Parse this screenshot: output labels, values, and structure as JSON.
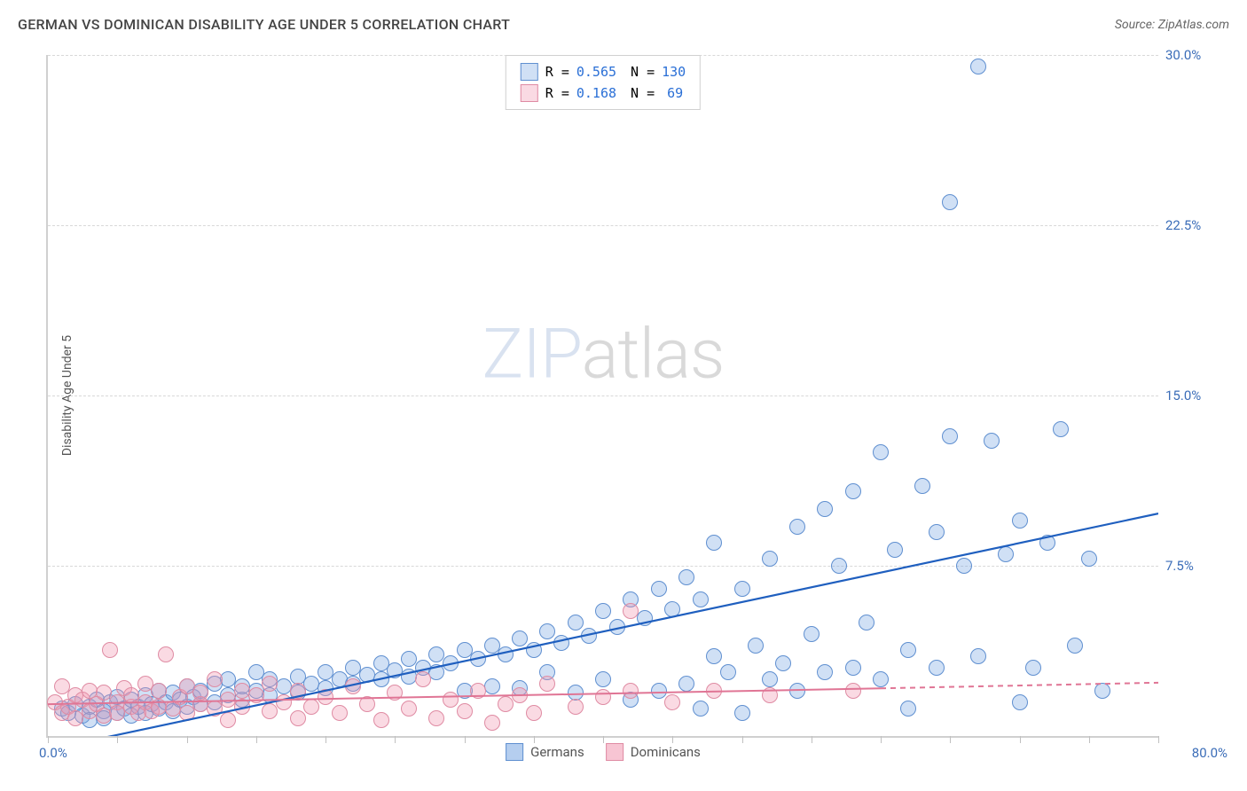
{
  "header": {
    "title": "GERMAN VS DOMINICAN DISABILITY AGE UNDER 5 CORRELATION CHART",
    "source": "Source: ZipAtlas.com"
  },
  "chart": {
    "type": "scatter",
    "ylabel": "Disability Age Under 5",
    "background_color": "#ffffff",
    "grid_color": "#d8d8d8",
    "axis_color": "#d0d0d0",
    "label_color": "#3b6db8",
    "xlim": [
      0,
      80
    ],
    "ylim": [
      0,
      30
    ],
    "x_min_label": "0.0%",
    "x_max_label": "80.0%",
    "xtick_positions": [
      0,
      5,
      10,
      15,
      20,
      25,
      30,
      35,
      40,
      45,
      50,
      55,
      60,
      65,
      70,
      75,
      80
    ],
    "yticks": [
      {
        "v": 7.5,
        "label": "7.5%"
      },
      {
        "v": 15.0,
        "label": "15.0%"
      },
      {
        "v": 22.5,
        "label": "22.5%"
      },
      {
        "v": 30.0,
        "label": "30.0%"
      }
    ],
    "watermark": {
      "part1": "ZIP",
      "part2": "atlas"
    },
    "marker_radius": 8,
    "marker_stroke_width": 1.2,
    "series": [
      {
        "name": "Germans",
        "fill": "rgba(120,165,225,0.35)",
        "stroke": "#5f8fd0",
        "R": "0.565",
        "N": "130",
        "regression": {
          "x1": 0,
          "y1": -0.6,
          "x2": 80,
          "y2": 9.8,
          "color": "#1f5fbf",
          "width": 2.2,
          "dash": "none",
          "dash_ext": "none"
        },
        "points": [
          [
            1,
            1.2
          ],
          [
            1.5,
            1.0
          ],
          [
            2,
            1.4
          ],
          [
            2.5,
            0.9
          ],
          [
            3,
            1.3
          ],
          [
            3,
            0.7
          ],
          [
            3.5,
            1.6
          ],
          [
            4,
            1.1
          ],
          [
            4,
            0.8
          ],
          [
            4.5,
            1.5
          ],
          [
            5,
            1.0
          ],
          [
            5,
            1.7
          ],
          [
            5.5,
            1.2
          ],
          [
            6,
            0.9
          ],
          [
            6,
            1.6
          ],
          [
            6.5,
            1.3
          ],
          [
            7,
            1.8
          ],
          [
            7,
            1.0
          ],
          [
            7.5,
            1.4
          ],
          [
            8,
            1.2
          ],
          [
            8,
            2.0
          ],
          [
            8.5,
            1.5
          ],
          [
            9,
            1.1
          ],
          [
            9,
            1.9
          ],
          [
            9.5,
            1.6
          ],
          [
            10,
            1.3
          ],
          [
            10,
            2.2
          ],
          [
            10.5,
            1.7
          ],
          [
            11,
            1.4
          ],
          [
            11,
            2.0
          ],
          [
            12,
            1.5
          ],
          [
            12,
            2.3
          ],
          [
            13,
            1.8
          ],
          [
            13,
            2.5
          ],
          [
            14,
            1.6
          ],
          [
            14,
            2.2
          ],
          [
            15,
            2.0
          ],
          [
            15,
            2.8
          ],
          [
            16,
            1.8
          ],
          [
            16,
            2.5
          ],
          [
            17,
            2.2
          ],
          [
            18,
            2.6
          ],
          [
            18,
            1.9
          ],
          [
            19,
            2.3
          ],
          [
            20,
            2.8
          ],
          [
            20,
            2.1
          ],
          [
            21,
            2.5
          ],
          [
            22,
            3.0
          ],
          [
            22,
            2.3
          ],
          [
            23,
            2.7
          ],
          [
            24,
            3.2
          ],
          [
            24,
            2.5
          ],
          [
            25,
            2.9
          ],
          [
            26,
            3.4
          ],
          [
            26,
            2.6
          ],
          [
            27,
            3.0
          ],
          [
            28,
            3.6
          ],
          [
            28,
            2.8
          ],
          [
            29,
            3.2
          ],
          [
            30,
            3.8
          ],
          [
            30,
            2.0
          ],
          [
            31,
            3.4
          ],
          [
            32,
            4.0
          ],
          [
            32,
            2.2
          ],
          [
            33,
            3.6
          ],
          [
            34,
            4.3
          ],
          [
            34,
            2.1
          ],
          [
            35,
            3.8
          ],
          [
            36,
            4.6
          ],
          [
            36,
            2.8
          ],
          [
            37,
            4.1
          ],
          [
            38,
            5.0
          ],
          [
            38,
            1.9
          ],
          [
            39,
            4.4
          ],
          [
            40,
            5.5
          ],
          [
            40,
            2.5
          ],
          [
            41,
            4.8
          ],
          [
            42,
            6.0
          ],
          [
            42,
            1.6
          ],
          [
            43,
            5.2
          ],
          [
            44,
            2.0
          ],
          [
            44,
            6.5
          ],
          [
            45,
            5.6
          ],
          [
            46,
            7.0
          ],
          [
            46,
            2.3
          ],
          [
            47,
            1.2
          ],
          [
            47,
            6.0
          ],
          [
            48,
            3.5
          ],
          [
            48,
            8.5
          ],
          [
            49,
            2.8
          ],
          [
            50,
            6.5
          ],
          [
            50,
            1.0
          ],
          [
            51,
            4.0
          ],
          [
            52,
            7.8
          ],
          [
            52,
            2.5
          ],
          [
            53,
            3.2
          ],
          [
            54,
            9.2
          ],
          [
            54,
            2.0
          ],
          [
            55,
            4.5
          ],
          [
            56,
            10.0
          ],
          [
            56,
            2.8
          ],
          [
            57,
            7.5
          ],
          [
            58,
            3.0
          ],
          [
            58,
            10.8
          ],
          [
            59,
            5.0
          ],
          [
            60,
            2.5
          ],
          [
            60,
            12.5
          ],
          [
            61,
            8.2
          ],
          [
            62,
            3.8
          ],
          [
            62,
            1.2
          ],
          [
            63,
            11.0
          ],
          [
            64,
            9.0
          ],
          [
            64,
            3.0
          ],
          [
            65,
            13.2
          ],
          [
            65,
            23.5
          ],
          [
            66,
            7.5
          ],
          [
            67,
            3.5
          ],
          [
            67,
            29.5
          ],
          [
            68,
            13.0
          ],
          [
            69,
            8.0
          ],
          [
            70,
            1.5
          ],
          [
            70,
            9.5
          ],
          [
            71,
            3.0
          ],
          [
            72,
            8.5
          ],
          [
            73,
            13.5
          ],
          [
            74,
            4.0
          ],
          [
            75,
            7.8
          ],
          [
            76,
            2.0
          ]
        ]
      },
      {
        "name": "Dominicans",
        "fill": "rgba(240,150,175,0.35)",
        "stroke": "#df8ba3",
        "R": "0.168",
        "N": "69",
        "regression": {
          "x1": 0,
          "y1": 1.4,
          "x2": 60,
          "y2": 2.1,
          "x2_ext": 80,
          "y2_ext": 2.35,
          "color": "#e07595",
          "width": 2.0,
          "dash": "none",
          "dash_ext": "6,5"
        },
        "points": [
          [
            0.5,
            1.5
          ],
          [
            1,
            1.0
          ],
          [
            1,
            2.2
          ],
          [
            1.5,
            1.3
          ],
          [
            2,
            1.8
          ],
          [
            2,
            0.8
          ],
          [
            2.5,
            1.6
          ],
          [
            3,
            1.1
          ],
          [
            3,
            2.0
          ],
          [
            3.5,
            1.4
          ],
          [
            4,
            1.9
          ],
          [
            4,
            0.9
          ],
          [
            4.5,
            3.8
          ],
          [
            5,
            1.5
          ],
          [
            5,
            1.0
          ],
          [
            5.5,
            2.1
          ],
          [
            6,
            1.3
          ],
          [
            6,
            1.8
          ],
          [
            6.5,
            1.0
          ],
          [
            7,
            2.3
          ],
          [
            7,
            1.5
          ],
          [
            7.5,
            1.1
          ],
          [
            8,
            2.0
          ],
          [
            8,
            1.3
          ],
          [
            8.5,
            3.6
          ],
          [
            9,
            1.2
          ],
          [
            9.5,
            1.7
          ],
          [
            10,
            1.0
          ],
          [
            10,
            2.2
          ],
          [
            11,
            1.4
          ],
          [
            11,
            1.9
          ],
          [
            12,
            1.2
          ],
          [
            12,
            2.5
          ],
          [
            13,
            1.6
          ],
          [
            13,
            0.7
          ],
          [
            14,
            2.0
          ],
          [
            14,
            1.3
          ],
          [
            15,
            1.8
          ],
          [
            16,
            1.1
          ],
          [
            16,
            2.3
          ],
          [
            17,
            1.5
          ],
          [
            18,
            0.8
          ],
          [
            18,
            2.0
          ],
          [
            19,
            1.3
          ],
          [
            20,
            1.7
          ],
          [
            21,
            1.0
          ],
          [
            22,
            2.2
          ],
          [
            23,
            1.4
          ],
          [
            24,
            0.7
          ],
          [
            25,
            1.9
          ],
          [
            26,
            1.2
          ],
          [
            27,
            2.5
          ],
          [
            28,
            0.8
          ],
          [
            29,
            1.6
          ],
          [
            30,
            1.1
          ],
          [
            31,
            2.0
          ],
          [
            32,
            0.6
          ],
          [
            33,
            1.4
          ],
          [
            34,
            1.8
          ],
          [
            35,
            1.0
          ],
          [
            36,
            2.3
          ],
          [
            38,
            1.3
          ],
          [
            40,
            1.7
          ],
          [
            42,
            2.0
          ],
          [
            42,
            5.5
          ],
          [
            45,
            1.5
          ],
          [
            48,
            2.0
          ],
          [
            52,
            1.8
          ],
          [
            58,
            2.0
          ]
        ]
      }
    ],
    "legend_bottom": [
      {
        "swatch_fill": "rgba(120,165,225,0.55)",
        "swatch_stroke": "#5f8fd0",
        "label": "Germans"
      },
      {
        "swatch_fill": "rgba(240,150,175,0.55)",
        "swatch_stroke": "#df8ba3",
        "label": "Dominicans"
      }
    ]
  }
}
